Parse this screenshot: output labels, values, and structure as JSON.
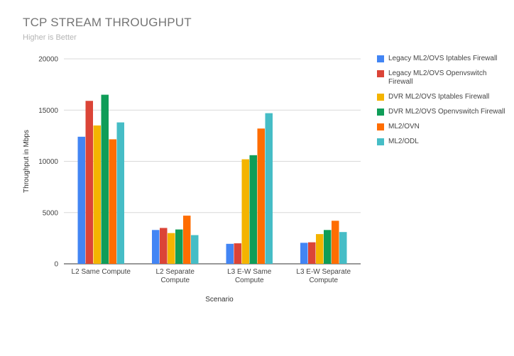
{
  "chart_data": {
    "type": "bar",
    "title": "TCP STREAM THROUGHPUT",
    "subtitle": "Higher is Better",
    "xlabel": "Scenario",
    "ylabel": "Throughput in Mbps",
    "ylim": [
      0,
      20000
    ],
    "yticks": [
      "0",
      "5000",
      "10000",
      "15000",
      "20000"
    ],
    "categories": [
      [
        "L2 Same Compute"
      ],
      [
        "L2 Separate",
        "Compute"
      ],
      [
        "L3 E-W Same",
        "Compute"
      ],
      [
        "L3 E-W Separate",
        "Compute"
      ]
    ],
    "grid": true,
    "legend_position": "right",
    "series": [
      {
        "name": "Legacy ML2/OVS Iptables Firewall",
        "color": "#4285f4",
        "values": [
          12400,
          3300,
          1950,
          2050
        ]
      },
      {
        "name": "Legacy ML2/OVS Openvswitch Firewall",
        "color": "#db4437",
        "values": [
          15900,
          3500,
          2000,
          2100
        ]
      },
      {
        "name": "DVR ML2/OVS Iptables Firewall",
        "color": "#f4b400",
        "values": [
          13500,
          3000,
          10200,
          2900
        ]
      },
      {
        "name": "DVR ML2/OVS Openvswitch Firewall",
        "color": "#0f9d58",
        "values": [
          16500,
          3350,
          10600,
          3300
        ]
      },
      {
        "name": "ML2/OVN",
        "color": "#ff6d01",
        "values": [
          12150,
          4700,
          13200,
          4200
        ]
      },
      {
        "name": "ML2/ODL",
        "color": "#46bdc6",
        "values": [
          13800,
          2800,
          14700,
          3100
        ]
      }
    ]
  }
}
